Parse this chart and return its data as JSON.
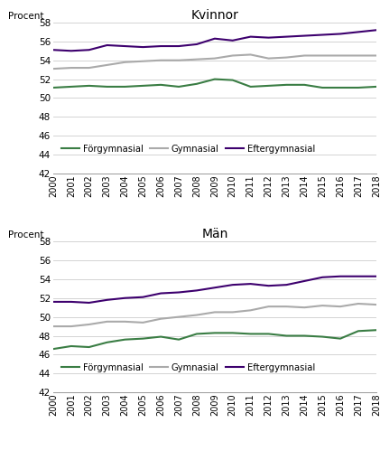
{
  "years": [
    2000,
    2001,
    2002,
    2003,
    2004,
    2005,
    2006,
    2007,
    2008,
    2009,
    2010,
    2011,
    2012,
    2013,
    2014,
    2015,
    2016,
    2017,
    2018
  ],
  "kvinnor": {
    "title": "Kvinnor",
    "forgymnasial": [
      51.1,
      51.2,
      51.3,
      51.2,
      51.2,
      51.3,
      51.4,
      51.2,
      51.5,
      52.0,
      51.9,
      51.2,
      51.3,
      51.4,
      51.4,
      51.1,
      51.1,
      51.1,
      51.2
    ],
    "gymnasial": [
      53.1,
      53.2,
      53.2,
      53.5,
      53.8,
      53.9,
      54.0,
      54.0,
      54.1,
      54.2,
      54.5,
      54.6,
      54.2,
      54.3,
      54.5,
      54.5,
      54.5,
      54.5,
      54.5
    ],
    "eftergymnasial": [
      55.1,
      55.0,
      55.1,
      55.6,
      55.5,
      55.4,
      55.5,
      55.5,
      55.7,
      56.3,
      56.1,
      56.5,
      56.4,
      56.5,
      56.6,
      56.7,
      56.8,
      57.0,
      57.2
    ]
  },
  "man": {
    "title": "Män",
    "forgymnasial": [
      46.6,
      46.9,
      46.8,
      47.3,
      47.6,
      47.7,
      47.9,
      47.6,
      48.2,
      48.3,
      48.3,
      48.2,
      48.2,
      48.0,
      48.0,
      47.9,
      47.7,
      48.5,
      48.6
    ],
    "gymnasial": [
      49.0,
      49.0,
      49.2,
      49.5,
      49.5,
      49.4,
      49.8,
      50.0,
      50.2,
      50.5,
      50.5,
      50.7,
      51.1,
      51.1,
      51.0,
      51.2,
      51.1,
      51.4,
      51.3
    ],
    "eftergymnasial": [
      51.6,
      51.6,
      51.5,
      51.8,
      52.0,
      52.1,
      52.5,
      52.6,
      52.8,
      53.1,
      53.4,
      53.5,
      53.3,
      53.4,
      53.8,
      54.2,
      54.3,
      54.3,
      54.3
    ]
  },
  "colors": {
    "forgymnasial": "#3a7d44",
    "gymnasial": "#aaaaaa",
    "eftergymnasial": "#3d006e"
  },
  "legend_labels": {
    "forgymnasial": "Förgymnasial",
    "gymnasial": "Gymnasial",
    "eftergymnasial": "Eftergymnasial"
  },
  "ylabel": "Procent",
  "ylim": [
    42,
    58
  ],
  "yticks": [
    42,
    44,
    46,
    48,
    50,
    52,
    54,
    56,
    58
  ],
  "line_width": 1.5,
  "background_color": "#ffffff"
}
